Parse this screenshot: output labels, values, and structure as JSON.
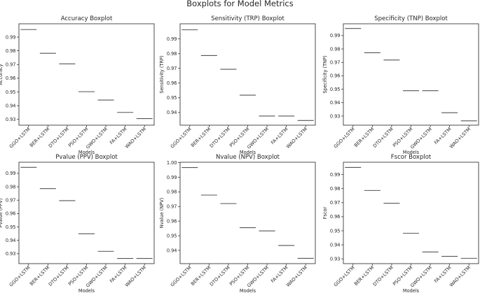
{
  "figure": {
    "title": "Boxplots for Model Metrics",
    "median_color": "#555555"
  },
  "chart_data": [
    {
      "type": "box",
      "title": "Accuracy Boxplot",
      "xlabel": "Models",
      "ylabel": "Accuracy",
      "categories": [
        "GGO+LSTM",
        "BER+LSTM",
        "DTO+LSTM",
        "PSO+LSTM",
        "GWO+LSTM",
        "FA+LSTM",
        "WAO+LSTM"
      ],
      "values": [
        0.9955,
        0.9782,
        0.9705,
        0.9502,
        0.9441,
        0.9351,
        0.9306
      ],
      "ylim": [
        0.9258,
        0.9997
      ],
      "yticks": [
        0.93,
        0.94,
        0.95,
        0.96,
        0.97,
        0.98,
        0.99
      ],
      "ytick_labels": [
        "0.93",
        "0.94",
        "0.95",
        "0.96",
        "0.97",
        "0.98",
        "0.99"
      ]
    },
    {
      "type": "box",
      "title": "Sensitivity (TRP) Boxplot",
      "xlabel": "Models",
      "ylabel": "Sensitivity (TRP)",
      "categories": [
        "GGO+LSTM",
        "BER+LSTM",
        "DTO+LSTM",
        "PSO+LSTM",
        "GWO+LSTM",
        "FA+LSTM",
        "WAO+LSTM"
      ],
      "values": [
        0.9962,
        0.9787,
        0.9694,
        0.9518,
        0.9376,
        0.9376,
        0.9346
      ],
      "ylim": [
        0.9314,
        1.0003
      ],
      "yticks": [
        0.94,
        0.95,
        0.96,
        0.97,
        0.98,
        0.99
      ],
      "ytick_labels": [
        "0.94",
        "0.95",
        "0.96",
        "0.97",
        "0.98",
        "0.99"
      ]
    },
    {
      "type": "box",
      "title": "Specificity (TNP) Boxplot",
      "xlabel": "Models",
      "ylabel": "Specificity (TNP)",
      "categories": [
        "GGO+LSTM",
        "BER+LSTM",
        "DTO+LSTM",
        "PSO+LSTM",
        "GWO+LSTM",
        "FA+LSTM",
        "WAO+LSTM"
      ],
      "values": [
        0.9953,
        0.9772,
        0.9718,
        0.9489,
        0.9489,
        0.9325,
        0.9264
      ],
      "ylim": [
        0.9232,
        0.9988
      ],
      "yticks": [
        0.93,
        0.94,
        0.95,
        0.96,
        0.97,
        0.98,
        0.99
      ],
      "ytick_labels": [
        "0.93",
        "0.94",
        "0.95",
        "0.96",
        "0.97",
        "0.98",
        "0.99"
      ]
    },
    {
      "type": "box",
      "title": "Pvalue (PPV) Boxplot",
      "xlabel": "Models",
      "ylabel": "Pvalue (PPV)",
      "categories": [
        "GGO+LSTM",
        "BER+LSTM",
        "DTO+LSTM",
        "PSO+LSTM",
        "GWO+LSTM",
        "FA+LSTM",
        "WAO+LSTM"
      ],
      "values": [
        0.9945,
        0.9786,
        0.9696,
        0.9449,
        0.9318,
        0.9265,
        0.9265
      ],
      "ylim": [
        0.9226,
        0.9983
      ],
      "yticks": [
        0.93,
        0.94,
        0.95,
        0.96,
        0.97,
        0.98,
        0.99
      ],
      "ytick_labels": [
        "0.93",
        "0.94",
        "0.95",
        "0.96",
        "0.97",
        "0.98",
        "0.99"
      ]
    },
    {
      "type": "box",
      "title": "Nvalue (NPV) Boxplot",
      "xlabel": "Models",
      "ylabel": "Nvalue (NPV)",
      "categories": [
        "GGO+LSTM",
        "BER+LSTM",
        "DTO+LSTM",
        "PSO+LSTM",
        "GWO+LSTM",
        "FA+LSTM",
        "WAO+LSTM"
      ],
      "values": [
        0.9967,
        0.9778,
        0.972,
        0.9555,
        0.9533,
        0.9433,
        0.9345
      ],
      "ylim": [
        0.9309,
        1.0003
      ],
      "yticks": [
        0.94,
        0.95,
        0.96,
        0.97,
        0.98,
        0.99,
        1.0
      ],
      "ytick_labels": [
        "0.94",
        "0.95",
        "0.96",
        "0.97",
        "0.98",
        "0.99",
        "1.00"
      ]
    },
    {
      "type": "box",
      "title": "Fscor Boxplot",
      "xlabel": "Models",
      "ylabel": "Fscor",
      "categories": [
        "GGO+LSTM",
        "BER+LSTM",
        "DTO+LSTM",
        "PSO+LSTM",
        "GWO+LSTM",
        "FA+LSTM",
        "WAO+LSTM"
      ],
      "values": [
        0.9951,
        0.9787,
        0.9696,
        0.9482,
        0.9349,
        0.9318,
        0.9304
      ],
      "ylim": [
        0.9266,
        0.9988
      ],
      "yticks": [
        0.93,
        0.94,
        0.95,
        0.96,
        0.97,
        0.98,
        0.99
      ],
      "ytick_labels": [
        "0.93",
        "0.94",
        "0.95",
        "0.96",
        "0.97",
        "0.98",
        "0.99"
      ]
    }
  ]
}
